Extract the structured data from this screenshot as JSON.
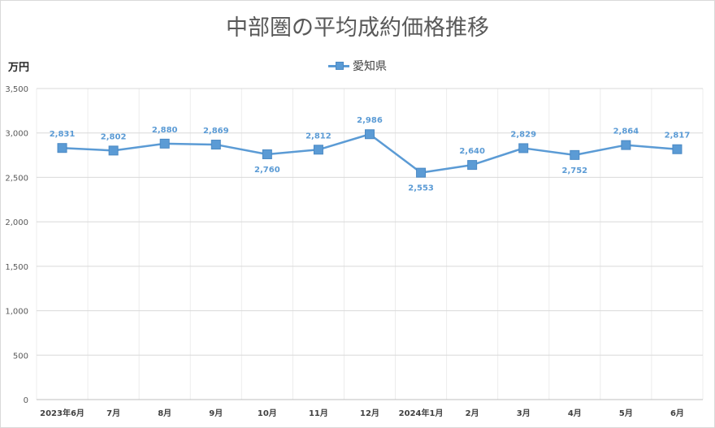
{
  "chart_data": {
    "type": "line",
    "title": "中部圏の平均成約価格推移",
    "ylabel": "万円",
    "xlabel": "",
    "categories": [
      "2023年6月",
      "7月",
      "8月",
      "9月",
      "10月",
      "11月",
      "12月",
      "2024年1月",
      "2月",
      "3月",
      "4月",
      "5月",
      "6月"
    ],
    "series": [
      {
        "name": "愛知県",
        "color": "#5b9bd5",
        "values": [
          2831,
          2802,
          2880,
          2869,
          2760,
          2812,
          2986,
          2553,
          2640,
          2829,
          2752,
          2864,
          2817
        ],
        "data_labels": [
          "2,831",
          "2,802",
          "2,880",
          "2,869",
          "2,760",
          "2,812",
          "2,986",
          "2,553",
          "2,640",
          "2,829",
          "2,752",
          "2,864",
          "2,817"
        ]
      }
    ],
    "ylim": [
      0,
      3500
    ],
    "yticks": [
      0,
      500,
      1000,
      1500,
      2000,
      2500,
      3000,
      3500
    ],
    "ytick_labels": [
      "0",
      "500",
      "1,000",
      "1,500",
      "2,000",
      "2,500",
      "3,000",
      "3,500"
    ],
    "grid": true,
    "legend_position": "top-center"
  }
}
